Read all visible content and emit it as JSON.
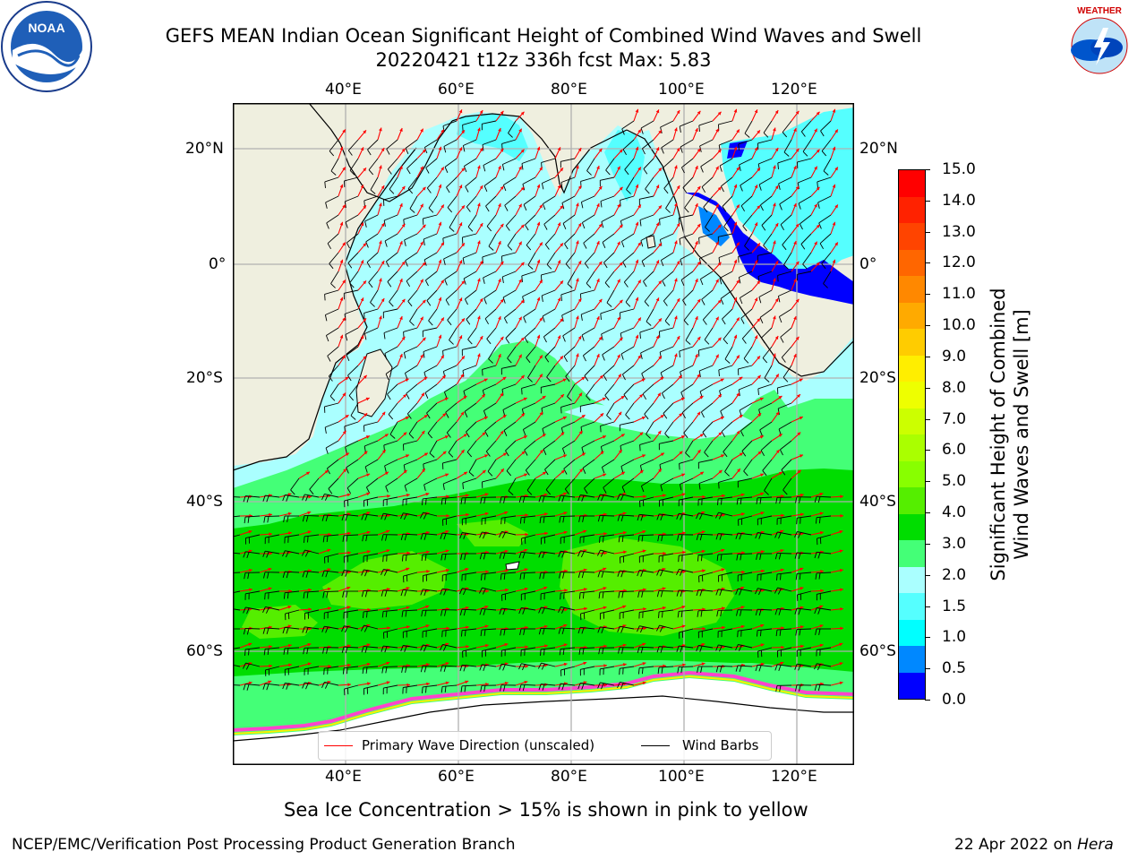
{
  "title": {
    "line1": "GEFS MEAN Indian Ocean Significant Height of Combined Wind Waves and Swell",
    "line2": "20220421 t12z 336h fcst   Max: 5.83"
  },
  "logos": {
    "left": "NOAA",
    "right": "NATIONAL WEATHER SERVICE"
  },
  "map": {
    "lon_labels": [
      "40°E",
      "60°E",
      "80°E",
      "100°E",
      "120°E"
    ],
    "lat_labels": [
      "20°N",
      "0°",
      "20°S",
      "40°S",
      "60°S"
    ],
    "colors": {
      "land": "#efefdf",
      "ice": "#ffffff",
      "grid": "#b0b0b0",
      "arrow": "#ff0000",
      "barb": "#000000"
    }
  },
  "legend": {
    "wave_direction": "Primary Wave Direction (unscaled)",
    "wind_barbs": "Wind Barbs",
    "wave_color": "#ff0000",
    "barb_color": "#000000"
  },
  "colorbar": {
    "label_line1": "Significant Height of Combined",
    "label_line2": "Wind Waves and Swell [m]",
    "ticks": [
      "15.0",
      "14.0",
      "13.0",
      "12.0",
      "11.0",
      "10.0",
      "9.0",
      "8.0",
      "7.0",
      "6.0",
      "5.0",
      "4.0",
      "3.0",
      "2.0",
      "1.5",
      "1.0",
      "0.5",
      "0.0"
    ],
    "colors_top_to_bottom": [
      "#ff0000",
      "#ff2200",
      "#ff4400",
      "#ff6600",
      "#ff8800",
      "#ffaa00",
      "#ffcc00",
      "#ffee00",
      "#eeff00",
      "#ccff00",
      "#aaff00",
      "#88ff00",
      "#55ee00",
      "#00dd00",
      "#44ff77",
      "#aaffff",
      "#55ffff",
      "#00ffff",
      "#0088ff",
      "#0000ff"
    ]
  },
  "note": "Sea Ice Concentration > 15% is shown in pink to yellow",
  "footer": {
    "left": "NCEP/EMC/Verification Post Processing Product Generation Branch",
    "right_prefix": "22 Apr 2022 on ",
    "right_host": "Hera"
  }
}
